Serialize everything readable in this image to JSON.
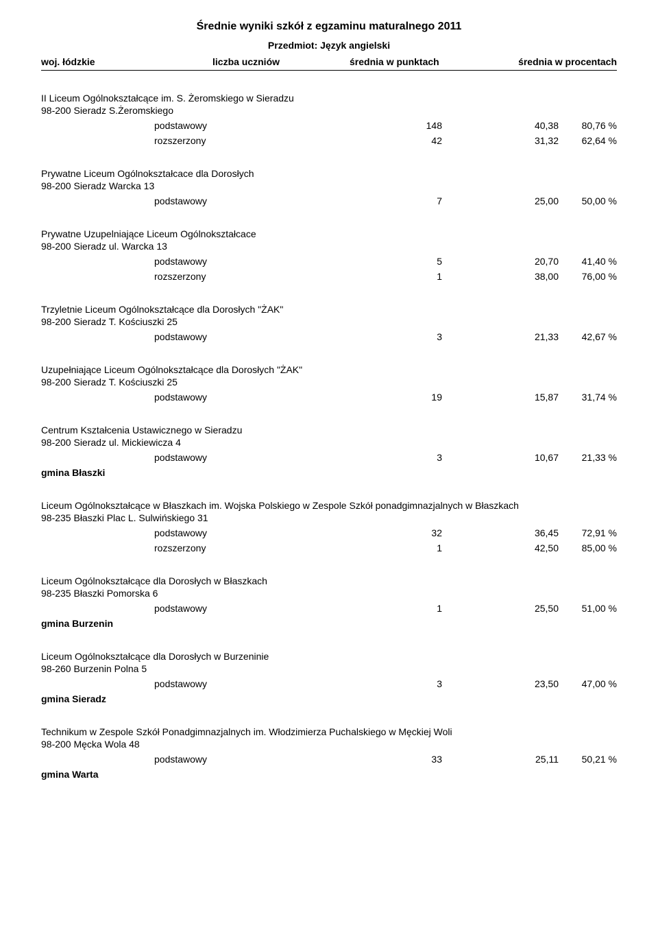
{
  "header": {
    "title": "Średnie wyniki szkół z egzaminu maturalnego 2011",
    "subject_label": "Przedmiot: Język angielski",
    "region": "woj. łódzkie",
    "col_count": "liczba uczniów",
    "col_avg_points": "średnia w punktach",
    "col_avg_pct": "średnia w procentach"
  },
  "schools": [
    {
      "name": "II Liceum Ogólnokształcące im. S. Żeromskiego w Sieradzu",
      "address": "98-200 Sieradz S.Żeromskiego",
      "rows": [
        {
          "level": "podstawowy",
          "count": "148",
          "avg_points": "40,38",
          "avg_pct": "80,76 %"
        },
        {
          "level": "rozszerzony",
          "count": "42",
          "avg_points": "31,32",
          "avg_pct": "62,64 %"
        }
      ]
    },
    {
      "name": "Prywatne Liceum Ogólnokształcace dla Dorosłych",
      "address": "98-200 Sieradz Warcka 13",
      "rows": [
        {
          "level": "podstawowy",
          "count": "7",
          "avg_points": "25,00",
          "avg_pct": "50,00 %"
        }
      ]
    },
    {
      "name": "Prywatne Uzupelniające Liceum Ogólnokształcace",
      "address": "98-200 Sieradz ul. Warcka 13",
      "rows": [
        {
          "level": "podstawowy",
          "count": "5",
          "avg_points": "20,70",
          "avg_pct": "41,40 %"
        },
        {
          "level": "rozszerzony",
          "count": "1",
          "avg_points": "38,00",
          "avg_pct": "76,00 %"
        }
      ]
    },
    {
      "name": "Trzyletnie Liceum Ogólnokształcące dla Dorosłych \"ŻAK\"",
      "address": "98-200 Sieradz T. Kościuszki 25",
      "rows": [
        {
          "level": "podstawowy",
          "count": "3",
          "avg_points": "21,33",
          "avg_pct": "42,67 %"
        }
      ]
    },
    {
      "name": "Uzupełniające Liceum Ogólnokształcące dla Dorosłych \"ŻAK\"",
      "address": "98-200 Sieradz T. Kościuszki 25",
      "rows": [
        {
          "level": "podstawowy",
          "count": "19",
          "avg_points": "15,87",
          "avg_pct": "31,74 %"
        }
      ]
    },
    {
      "name": "Centrum Kształcenia Ustawicznego w Sieradzu",
      "address": "98-200 Sieradz ul. Mickiewicza 4",
      "rows": [
        {
          "level": "podstawowy",
          "count": "3",
          "avg_points": "10,67",
          "avg_pct": "21,33 %"
        }
      ],
      "gmina": "gmina Błaszki"
    },
    {
      "name": "Liceum Ogólnokształcące w Błaszkach im. Wojska Polskiego w Zespole Szkół ponadgimnazjalnych w Błaszkach",
      "address": "98-235 Błaszki Plac L. Sulwińskiego 31",
      "rows": [
        {
          "level": "podstawowy",
          "count": "32",
          "avg_points": "36,45",
          "avg_pct": "72,91 %"
        },
        {
          "level": "rozszerzony",
          "count": "1",
          "avg_points": "42,50",
          "avg_pct": "85,00 %"
        }
      ]
    },
    {
      "name": "Liceum Ogólnokształcące dla Dorosłych w Błaszkach",
      "address": "98-235 Błaszki Pomorska 6",
      "rows": [
        {
          "level": "podstawowy",
          "count": "1",
          "avg_points": "25,50",
          "avg_pct": "51,00 %"
        }
      ],
      "gmina": "gmina Burzenin"
    },
    {
      "name": "Liceum Ogólnokształcące dla Dorosłych w Burzeninie",
      "address": "98-260 Burzenin Polna 5",
      "rows": [
        {
          "level": "podstawowy",
          "count": "3",
          "avg_points": "23,50",
          "avg_pct": "47,00 %"
        }
      ],
      "gmina": "gmina Sieradz"
    },
    {
      "name": "Technikum w Zespole Szkół Ponadgimnazjalnych im. Włodzimierza Puchalskiego w Męckiej Woli",
      "address": "98-200 Męcka Wola 48",
      "rows": [
        {
          "level": "podstawowy",
          "count": "33",
          "avg_points": "25,11",
          "avg_pct": "50,21 %"
        }
      ],
      "gmina": "gmina Warta"
    }
  ]
}
